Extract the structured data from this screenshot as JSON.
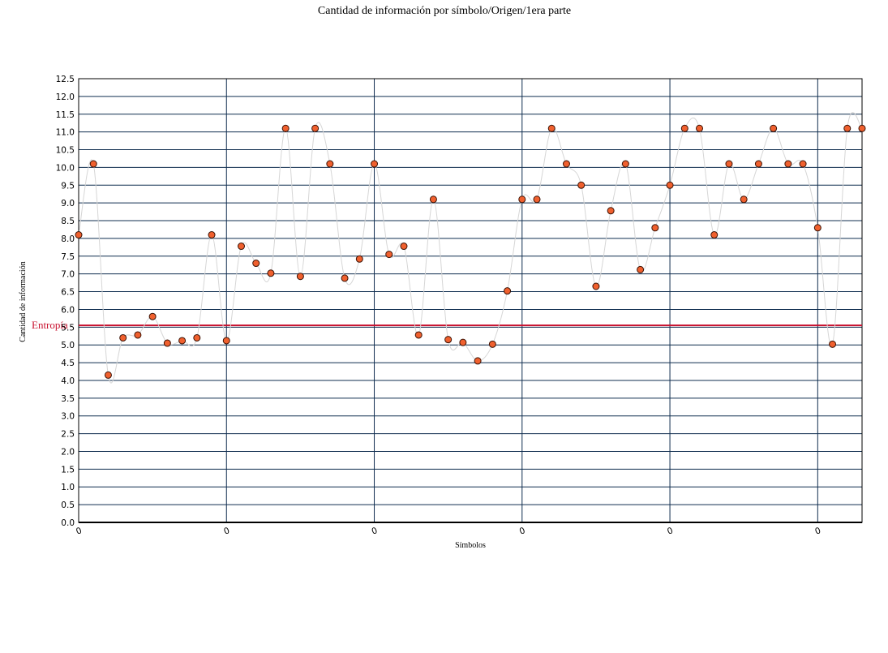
{
  "colors": {
    "background": "#ffffff",
    "grid": "#0f2d4f",
    "frame": "#000000",
    "point_fill": "#f0602e",
    "point_stroke": "#3a1205",
    "connector": "#d6d6d6",
    "reference_line": "#c8102e"
  },
  "chart_data": {
    "type": "scatter",
    "title": "Cantidad de información por símbolo/Origen/1era parte",
    "xlabel": "Símbolos",
    "ylabel": "Cantidad de información",
    "ylim": [
      0,
      12.5
    ],
    "yticks": [
      "0.0",
      "0.5",
      "1.0",
      "1.5",
      "2.0",
      "2.5",
      "3.0",
      "3.5",
      "4.0",
      "4.5",
      "5.0",
      "5.5",
      "6.0",
      "6.5",
      "7.0",
      "7.5",
      "8.0",
      "8.5",
      "9.0",
      "9.5",
      "10.0",
      "10.5",
      "11.0",
      "11.5",
      "12.0",
      "12.5"
    ],
    "xlim": [
      0,
      53
    ],
    "xticks": [
      {
        "x": 0,
        "label": "0"
      },
      {
        "x": 10,
        "label": "0"
      },
      {
        "x": 20,
        "label": "0"
      },
      {
        "x": 30,
        "label": "0"
      },
      {
        "x": 40,
        "label": "0"
      },
      {
        "x": 50,
        "label": "0"
      }
    ],
    "grid": "on",
    "reference_line": {
      "label": "Entropía",
      "y": 5.55
    },
    "series": [
      {
        "x": [
          0,
          1,
          2,
          3,
          4,
          5,
          6,
          7,
          8,
          9,
          10,
          11,
          12,
          13,
          14,
          15,
          16,
          17,
          18,
          19,
          20,
          21,
          22,
          23,
          24,
          25,
          26,
          27,
          28,
          29,
          30,
          31,
          32,
          33,
          34,
          35,
          36,
          37,
          38,
          39,
          40,
          41,
          42,
          43,
          44,
          45,
          46,
          47,
          48,
          49,
          50,
          51,
          52,
          53
        ],
        "y": [
          8.1,
          10.1,
          4.15,
          5.2,
          5.28,
          5.8,
          5.05,
          5.12,
          5.2,
          8.1,
          5.12,
          7.78,
          7.3,
          7.02,
          11.1,
          6.93,
          11.1,
          10.1,
          6.88,
          7.42,
          10.1,
          7.55,
          7.78,
          5.28,
          9.1,
          5.15,
          5.07,
          4.55,
          5.02,
          6.52,
          9.1,
          9.1,
          11.1,
          10.1,
          9.5,
          6.65,
          8.78,
          10.1,
          7.12,
          8.3,
          9.5,
          11.1,
          11.1,
          8.1,
          10.1,
          9.1,
          10.1,
          11.1,
          10.1,
          10.1,
          8.3,
          5.02,
          11.1,
          11.1
        ]
      }
    ]
  }
}
